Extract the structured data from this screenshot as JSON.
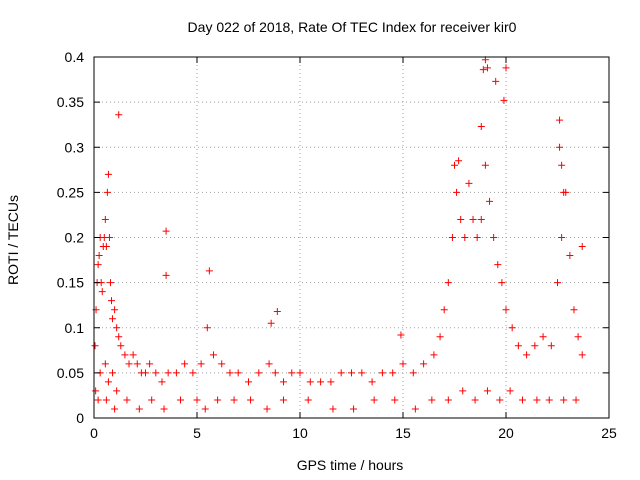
{
  "chart_data": {
    "type": "scatter",
    "title": "Day 022 of 2018, Rate Of TEC Index for receiver kir0",
    "xlabel": "GPS time / hours",
    "ylabel": "ROTI / TECUs",
    "xlim": [
      0,
      25
    ],
    "ylim": [
      0,
      0.4
    ],
    "x_ticks": [
      0,
      5,
      10,
      15,
      20,
      25
    ],
    "y_ticks": [
      0,
      0.05,
      0.1,
      0.15,
      0.2,
      0.25,
      0.3,
      0.35,
      0.4
    ],
    "x_tick_labels": [
      "0",
      "5",
      "10",
      "15",
      "20",
      "25"
    ],
    "y_tick_labels": [
      "0",
      "0.05",
      "0.1",
      "0.15",
      "0.2",
      "0.25",
      "0.3",
      "0.35",
      "0.4"
    ],
    "grid": true,
    "marker": "+",
    "series": [
      {
        "name": "ROTI",
        "color": "#ff0000",
        "x": [
          0.05,
          0.1,
          0.15,
          0.2,
          0.25,
          0.3,
          0.35,
          0.4,
          0.45,
          0.5,
          0.55,
          0.6,
          0.65,
          0.7,
          0.75,
          0.8,
          0.85,
          0.9,
          1.0,
          1.1,
          1.2,
          1.3,
          1.5,
          1.7,
          1.9,
          2.1,
          2.3,
          2.5,
          2.7,
          3.0,
          3.3,
          3.6,
          4.0,
          4.4,
          4.8,
          5.2,
          5.5,
          5.8,
          6.2,
          6.6,
          7.0,
          7.5,
          8.0,
          8.5,
          8.8,
          9.2,
          9.6,
          10.0,
          10.5,
          11.0,
          11.5,
          12.0,
          12.5,
          13.0,
          13.5,
          14.0,
          14.5,
          15.0,
          15.5,
          16.0,
          16.5,
          16.8,
          17.0,
          17.2,
          17.4,
          17.6,
          17.8,
          18.0,
          18.2,
          18.4,
          18.6,
          18.8,
          19.0,
          19.2,
          19.4,
          19.6,
          19.8,
          20.0,
          20.3,
          20.6,
          21.0,
          21.4,
          21.8,
          22.2,
          22.5,
          22.7,
          22.9,
          23.1,
          23.3,
          23.5,
          23.7,
          0.08,
          0.3,
          0.55,
          0.7,
          0.9,
          1.1,
          1.2,
          3.5,
          3.5,
          5.6,
          8.6,
          8.9,
          14.9,
          17.5,
          17.7,
          18.8,
          18.9,
          19.0,
          19.1,
          19.5,
          19.9,
          20.0,
          22.6,
          22.6,
          22.7,
          22.8,
          23.7,
          0.2,
          0.6,
          1.0,
          1.6,
          2.2,
          2.8,
          3.4,
          4.2,
          5.0,
          5.4,
          6.0,
          6.8,
          7.6,
          8.4,
          9.2,
          10.4,
          11.6,
          12.6,
          13.6,
          14.6,
          15.6,
          16.4,
          17.2,
          17.9,
          18.5,
          19.1,
          19.7,
          20.2,
          20.8,
          21.5,
          22.1,
          22.8,
          23.4
        ],
        "y": [
          0.08,
          0.12,
          0.15,
          0.17,
          0.18,
          0.2,
          0.15,
          0.14,
          0.19,
          0.2,
          0.22,
          0.19,
          0.25,
          0.27,
          0.2,
          0.15,
          0.13,
          0.11,
          0.12,
          0.1,
          0.09,
          0.08,
          0.07,
          0.06,
          0.07,
          0.06,
          0.05,
          0.05,
          0.06,
          0.05,
          0.04,
          0.05,
          0.05,
          0.06,
          0.05,
          0.06,
          0.1,
          0.07,
          0.06,
          0.05,
          0.05,
          0.04,
          0.05,
          0.06,
          0.05,
          0.04,
          0.05,
          0.05,
          0.04,
          0.04,
          0.04,
          0.05,
          0.05,
          0.05,
          0.04,
          0.05,
          0.05,
          0.06,
          0.05,
          0.06,
          0.07,
          0.09,
          0.12,
          0.15,
          0.2,
          0.25,
          0.22,
          0.2,
          0.26,
          0.22,
          0.2,
          0.22,
          0.28,
          0.24,
          0.2,
          0.17,
          0.15,
          0.12,
          0.1,
          0.08,
          0.07,
          0.08,
          0.09,
          0.08,
          0.15,
          0.2,
          0.25,
          0.18,
          0.12,
          0.09,
          0.07,
          0.03,
          0.05,
          0.06,
          0.04,
          0.05,
          0.03,
          0.336,
          0.207,
          0.158,
          0.163,
          0.105,
          0.118,
          0.092,
          0.28,
          0.285,
          0.323,
          0.386,
          0.397,
          0.388,
          0.373,
          0.352,
          0.388,
          0.33,
          0.3,
          0.28,
          0.25,
          0.19,
          0.02,
          0.02,
          0.01,
          0.02,
          0.01,
          0.02,
          0.01,
          0.02,
          0.02,
          0.01,
          0.02,
          0.02,
          0.02,
          0.01,
          0.02,
          0.02,
          0.01,
          0.01,
          0.02,
          0.02,
          0.01,
          0.02,
          0.02,
          0.03,
          0.02,
          0.03,
          0.02,
          0.03,
          0.02,
          0.02,
          0.02,
          0.02,
          0.02
        ]
      }
    ]
  }
}
